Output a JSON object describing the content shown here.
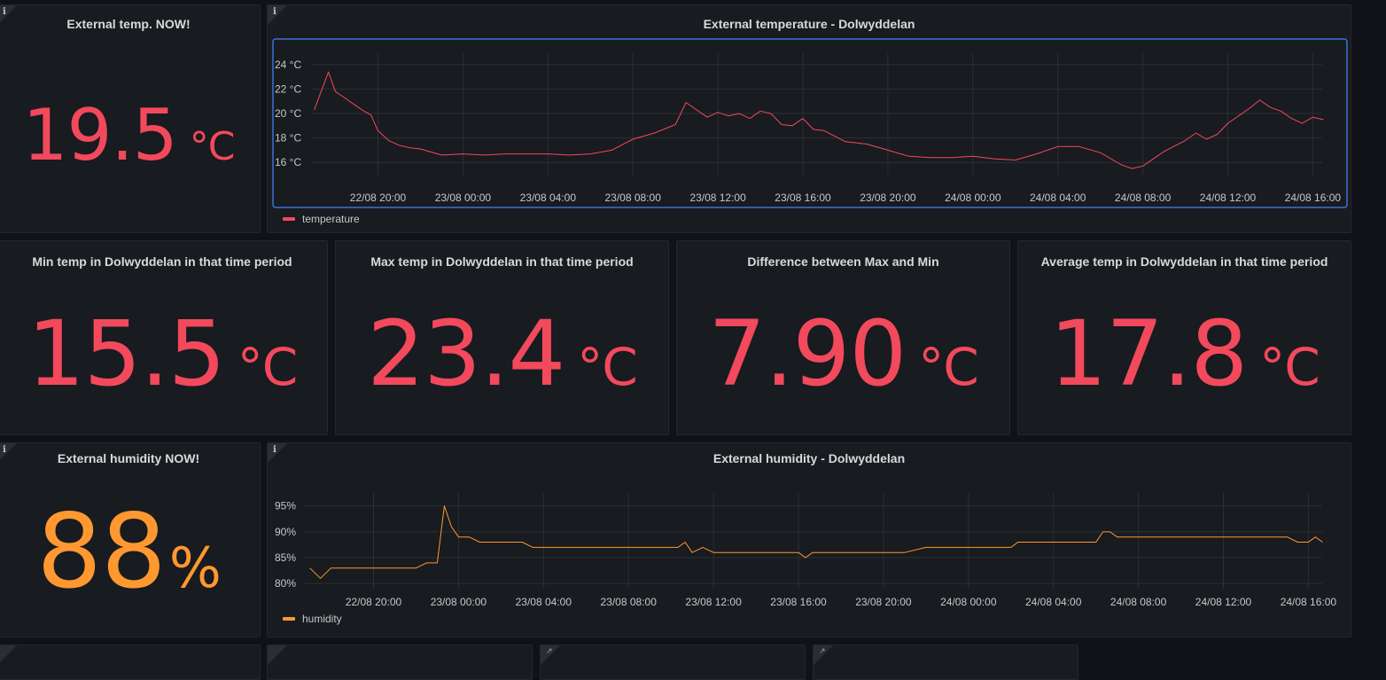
{
  "panels": {
    "temp_now": {
      "title": "External temp. NOW!",
      "value": "19.5",
      "unit": "°C"
    },
    "temp_chart": {
      "title": "External temperature - Dolwyddelan",
      "legend": "temperature",
      "y_ticks": [
        "24 °C",
        "22 °C",
        "20 °C",
        "18 °C",
        "16 °C"
      ],
      "x_ticks": [
        "22/08 20:00",
        "23/08 00:00",
        "23/08 04:00",
        "23/08 08:00",
        "23/08 12:00",
        "23/08 16:00",
        "23/08 20:00",
        "24/08 00:00",
        "24/08 04:00",
        "24/08 08:00",
        "24/08 12:00",
        "24/08 16:00"
      ]
    },
    "min_temp": {
      "title": "Min temp in Dolwyddelan in that time period",
      "value": "15.5",
      "unit": "°C"
    },
    "max_temp": {
      "title": "Max temp in Dolwyddelan in that time period",
      "value": "23.4",
      "unit": "°C"
    },
    "diff_temp": {
      "title": "Difference between Max and Min",
      "value": "7.90",
      "unit": "°C"
    },
    "avg_temp": {
      "title": "Average temp in Dolwyddelan in that time period",
      "value": "17.8",
      "unit": "°C"
    },
    "humidity_now": {
      "title": "External humidity NOW!",
      "value": "88",
      "unit": "%"
    },
    "humidity_chart": {
      "title": "External humidity - Dolwyddelan",
      "legend": "humidity",
      "y_ticks": [
        "95%",
        "90%",
        "85%",
        "80%"
      ],
      "x_ticks": [
        "22/08 20:00",
        "23/08 00:00",
        "23/08 04:00",
        "23/08 08:00",
        "23/08 12:00",
        "23/08 16:00",
        "23/08 20:00",
        "24/08 00:00",
        "24/08 04:00",
        "24/08 08:00",
        "24/08 12:00",
        "24/08 16:00"
      ]
    }
  },
  "colors": {
    "temperature": "#f2495c",
    "humidity": "#ff9830",
    "selected_border": "#3d71d9"
  },
  "chart_data": [
    {
      "type": "line",
      "title": "External temperature - Dolwyddelan",
      "ylim": [
        15,
        24.5
      ],
      "series": [
        {
          "name": "temperature",
          "x": [
            "22/08 17:00",
            "22/08 17:40",
            "22/08 18:00",
            "22/08 18:30",
            "22/08 19:00",
            "22/08 19:20",
            "22/08 19:40",
            "22/08 20:00",
            "22/08 20:30",
            "22/08 21:00",
            "22/08 21:30",
            "22/08 22:00",
            "22/08 23:00",
            "23/08 00:00",
            "23/08 01:00",
            "23/08 02:00",
            "23/08 04:00",
            "23/08 05:00",
            "23/08 06:00",
            "23/08 07:00",
            "23/08 08:00",
            "23/08 09:00",
            "23/08 10:00",
            "23/08 10:30",
            "23/08 11:30",
            "23/08 12:00",
            "23/08 12:30",
            "23/08 13:00",
            "23/08 13:30",
            "23/08 14:00",
            "23/08 14:30",
            "23/08 15:00",
            "23/08 15:30",
            "23/08 16:00",
            "23/08 16:30",
            "23/08 17:00",
            "23/08 18:00",
            "23/08 19:00",
            "23/08 20:00",
            "23/08 21:00",
            "23/08 22:00",
            "23/08 23:00",
            "24/08 00:00",
            "24/08 01:00",
            "24/08 02:00",
            "24/08 03:00",
            "24/08 04:00",
            "24/08 05:00",
            "24/08 06:00",
            "24/08 07:00",
            "24/08 07:30",
            "24/08 08:00",
            "24/08 09:00",
            "24/08 10:00",
            "24/08 10:30",
            "24/08 11:00",
            "24/08 11:30",
            "24/08 12:00",
            "24/08 13:00",
            "24/08 13:30",
            "24/08 14:00",
            "24/08 14:30",
            "24/08 15:00",
            "24/08 15:30",
            "24/08 16:00",
            "24/08 16:30"
          ],
          "values": [
            20.3,
            23.4,
            21.8,
            21.2,
            20.6,
            20.2,
            19.9,
            18.6,
            17.8,
            17.4,
            17.2,
            17.1,
            16.6,
            16.7,
            16.6,
            16.7,
            16.7,
            16.6,
            16.7,
            17.0,
            17.9,
            18.4,
            19.1,
            20.9,
            19.7,
            20.1,
            19.8,
            20.0,
            19.6,
            20.2,
            20.0,
            19.1,
            19.0,
            19.6,
            18.7,
            18.6,
            17.7,
            17.5,
            17.0,
            16.5,
            16.4,
            16.4,
            16.5,
            16.3,
            16.2,
            16.7,
            17.3,
            17.3,
            16.8,
            15.8,
            15.5,
            15.7,
            16.9,
            17.8,
            18.4,
            17.9,
            18.3,
            19.2,
            20.4,
            21.1,
            20.5,
            20.2,
            19.6,
            19.2,
            19.7,
            19.5
          ]
        }
      ]
    },
    {
      "type": "line",
      "title": "External humidity - Dolwyddelan",
      "ylim": [
        79,
        96.5
      ],
      "series": [
        {
          "name": "humidity",
          "x": [
            "22/08 17:00",
            "22/08 17:30",
            "22/08 18:00",
            "22/08 19:00",
            "22/08 20:00",
            "22/08 22:00",
            "22/08 22:30",
            "22/08 23:00",
            "22/08 23:20",
            "22/08 23:40",
            "23/08 00:00",
            "23/08 00:30",
            "23/08 01:00",
            "23/08 02:00",
            "23/08 03:00",
            "23/08 03:30",
            "23/08 05:00",
            "23/08 07:00",
            "23/08 09:00",
            "23/08 10:00",
            "23/08 10:20",
            "23/08 10:40",
            "23/08 11:00",
            "23/08 11:30",
            "23/08 12:00",
            "23/08 13:00",
            "23/08 14:00",
            "23/08 15:00",
            "23/08 16:00",
            "23/08 16:20",
            "23/08 16:40",
            "23/08 17:00",
            "23/08 18:00",
            "23/08 20:00",
            "23/08 21:00",
            "23/08 22:00",
            "24/08 00:00",
            "24/08 01:00",
            "24/08 02:00",
            "24/08 02:20",
            "24/08 04:00",
            "24/08 05:00",
            "24/08 06:00",
            "24/08 06:20",
            "24/08 06:40",
            "24/08 07:00",
            "24/08 07:20",
            "24/08 08:00",
            "24/08 10:00",
            "24/08 12:00",
            "24/08 14:00",
            "24/08 15:00",
            "24/08 15:30",
            "24/08 16:00",
            "24/08 16:20",
            "24/08 16:40"
          ],
          "values": [
            83,
            81,
            83,
            83,
            83,
            83,
            84,
            84,
            95,
            91,
            89,
            89,
            88,
            88,
            88,
            87,
            87,
            87,
            87,
            87,
            87,
            88,
            86,
            87,
            86,
            86,
            86,
            86,
            86,
            85,
            86,
            86,
            86,
            86,
            86,
            87,
            87,
            87,
            87,
            88,
            88,
            88,
            88,
            90,
            90,
            89,
            89,
            89,
            89,
            89,
            89,
            89,
            88,
            88,
            89,
            88
          ]
        }
      ]
    }
  ]
}
